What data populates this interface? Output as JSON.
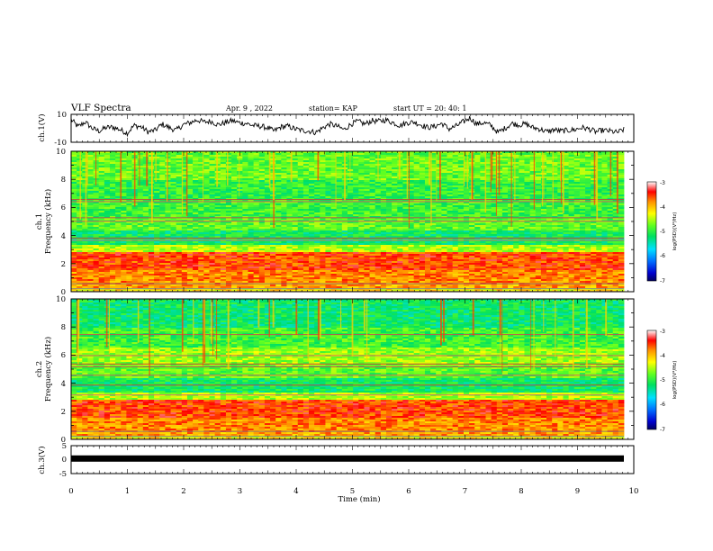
{
  "header": {
    "title": "VLF Spectra",
    "date": "Apr. 9  , 2022",
    "station": "station= KAP",
    "start_ut": "start  UT  =   20: 40: 1"
  },
  "chart_data": [
    {
      "type": "line",
      "panel": "ch1_waveform",
      "ylabel": "ch.1(V)",
      "ylim": [
        -10,
        10
      ],
      "y_ticks": [
        "10",
        "-10"
      ],
      "xlim": [
        0,
        10
      ],
      "series": [
        {
          "values": [
            6.2,
            1.0,
            4.5,
            0.0,
            -2.0,
            0.5,
            0.8,
            -1.0,
            -3.5,
            2.0,
            1.0,
            -2.5,
            -1.5,
            3.0,
            0.5,
            -1.5,
            2.5,
            4.0,
            6.0,
            4.5,
            5.0,
            2.5,
            4.0,
            5.5,
            4.0,
            3.5,
            2.0,
            1.5,
            0.5,
            -2.0,
            1.0,
            1.5,
            -0.5,
            -1.5,
            -2.0,
            -3.0,
            0.5,
            3.0,
            1.5,
            -1.0,
            3.0,
            5.0,
            3.0,
            5.5,
            5.0,
            6.0,
            4.0,
            2.0,
            4.0,
            4.5,
            2.5,
            0.5,
            1.5,
            3.5,
            -0.5,
            1.5,
            4.5,
            7.5,
            3.0,
            4.0,
            2.0,
            -3.0,
            0.0,
            3.5,
            2.5,
            3.0,
            0.5,
            -0.5,
            -2.5,
            -1.0,
            -2.0,
            -1.5,
            -1.0,
            0.5,
            -0.5,
            -2.5,
            -1.5,
            -2.0,
            -3.0,
            -1.0
          ]
        }
      ]
    },
    {
      "type": "heatmap",
      "panel": "ch1_spectrogram",
      "ylabel": "ch.1\nFrequency  (kHz)",
      "ylim": [
        0,
        10
      ],
      "y_ticks": [
        "0",
        "2",
        "4",
        "6",
        "8",
        "10"
      ],
      "xlim": [
        0,
        10
      ],
      "colorbar": {
        "range": [
          -7,
          -3
        ],
        "ticks": [
          "-3",
          "-4",
          "-5",
          "-6",
          "-7"
        ],
        "label": "log(PSD)(V²/Hz)"
      }
    },
    {
      "type": "heatmap",
      "panel": "ch2_spectrogram",
      "ylabel": "ch.2\nFrequency  (kHz)",
      "ylim": [
        0,
        10
      ],
      "y_ticks": [
        "0",
        "2",
        "4",
        "6",
        "8",
        "10"
      ],
      "xlim": [
        0,
        10
      ],
      "colorbar": {
        "range": [
          -7,
          -3
        ],
        "ticks": [
          "-3",
          "-4",
          "-5",
          "-6",
          "-7"
        ],
        "label": "log(PSD)(V²/Hz)"
      }
    },
    {
      "type": "line",
      "panel": "ch3_waveform",
      "ylabel": "ch.3(V)",
      "ylim": [
        -5,
        5
      ],
      "y_ticks": [
        "5",
        "0",
        "-5"
      ],
      "xlim": [
        0,
        10
      ],
      "xlabel": "Time  (min)",
      "x_ticks": [
        "0",
        "1",
        "2",
        "3",
        "4",
        "5",
        "6",
        "7",
        "8",
        "9",
        "10"
      ],
      "series": [
        {
          "values": [
            0.4,
            0.4,
            0.4,
            0.4,
            0.4,
            0.4,
            0.4,
            0.4,
            0.4,
            0.4
          ]
        }
      ]
    }
  ]
}
